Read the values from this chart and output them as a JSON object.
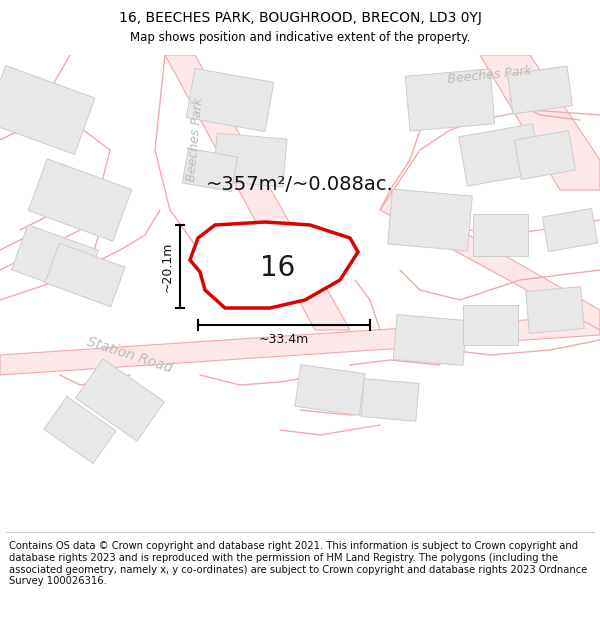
{
  "title": "16, BEECHES PARK, BOUGHROOD, BRECON, LD3 0YJ",
  "subtitle": "Map shows position and indicative extent of the property.",
  "footer": "Contains OS data © Crown copyright and database right 2021. This information is subject to Crown copyright and database rights 2023 and is reproduced with the permission of HM Land Registry. The polygons (including the associated geometry, namely x, y co-ordinates) are subject to Crown copyright and database rights 2023 Ordnance Survey 100026316.",
  "bg_color": "#ffffff",
  "map_bg": "#ffffff",
  "road_line_color": "#f0aaaa",
  "building_fill": "#e8e8e8",
  "building_edge": "#cccccc",
  "plot_fill": "#ffffff",
  "plot_outline": "#dd0000",
  "area_text": "~357m²/~0.088ac.",
  "number_text": "16",
  "dim_width": "~33.4m",
  "dim_height": "~20.1m",
  "street1": "Beeches Park",
  "street2": "Station Road",
  "footer_fontsize": 7.2,
  "title_fontsize": 10,
  "subtitle_fontsize": 8.5,
  "plot_poly_x": [
    195,
    215,
    260,
    310,
    350,
    360,
    340,
    310,
    270,
    220,
    195,
    195
  ],
  "plot_poly_y": [
    285,
    255,
    245,
    250,
    255,
    270,
    310,
    330,
    335,
    320,
    305,
    285
  ]
}
